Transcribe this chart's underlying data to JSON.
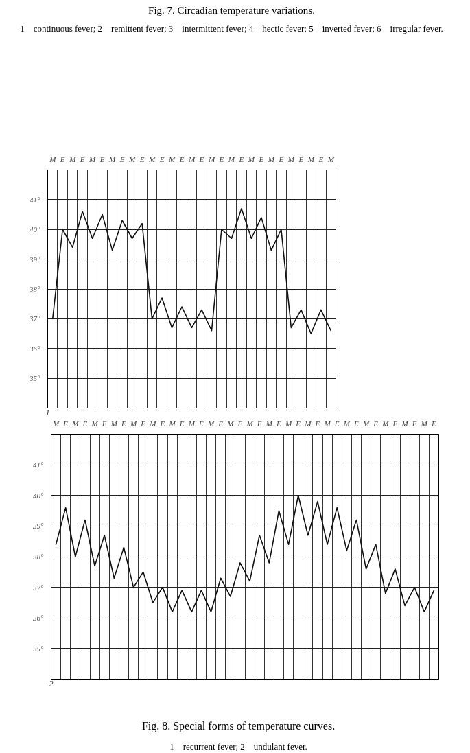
{
  "chart_data": [
    {
      "type": "line",
      "annotations": [
        "Fig. 7. Circadian temperature variations.",
        "1—continuous fever; 2—remittent fever; 3—intermittent fever; 4—hectic fever; 5—inverted fever; 6—irregular fever."
      ],
      "xlabel": "1",
      "categories": [
        "M",
        "E",
        "M",
        "E",
        "M",
        "E",
        "M",
        "E",
        "M",
        "E",
        "M",
        "E",
        "M",
        "E",
        "M",
        "E",
        "M",
        "E",
        "M",
        "E",
        "M",
        "E",
        "M",
        "E",
        "M",
        "E",
        "M",
        "E",
        "M"
      ],
      "series": [
        {
          "color": "#111111",
          "values": [
            37.0,
            40.0,
            39.4,
            40.6,
            39.7,
            40.5,
            39.3,
            40.3,
            39.7,
            40.2,
            37.0,
            37.7,
            36.7,
            37.4,
            36.7,
            37.3,
            36.6,
            40.0,
            39.7,
            40.7,
            39.7,
            40.4,
            39.3,
            40.0,
            36.7,
            37.3,
            36.5,
            37.3,
            36.6
          ]
        }
      ],
      "ylim": [
        34,
        42
      ],
      "yticks": [
        {
          "value": 35,
          "label": "35°"
        },
        {
          "value": 36,
          "label": "36°"
        },
        {
          "value": 37,
          "label": "37°"
        },
        {
          "value": 38,
          "label": "38°"
        },
        {
          "value": 39,
          "label": "39°"
        },
        {
          "value": 40,
          "label": "40°"
        },
        {
          "value": 41,
          "label": "41°"
        }
      ],
      "grid": true
    },
    {
      "type": "line",
      "title": "Fig. 8. Special forms of temperature curves.",
      "subtitle": "1—recurrent fever; 2—undulant fever.",
      "xlabel": "2",
      "categories": [
        "M",
        "E",
        "M",
        "E",
        "M",
        "E",
        "M",
        "E",
        "M",
        "E",
        "M",
        "E",
        "M",
        "E",
        "M",
        "E",
        "M",
        "E",
        "M",
        "E",
        "M",
        "E",
        "M",
        "E",
        "M",
        "E",
        "M",
        "E",
        "M",
        "E",
        "M",
        "E",
        "M",
        "E",
        "M",
        "E",
        "M",
        "E",
        "M",
        "E"
      ],
      "series": [
        {
          "color": "#111111",
          "values": [
            38.4,
            39.6,
            38.0,
            39.2,
            37.7,
            38.7,
            37.3,
            38.3,
            37.0,
            37.5,
            36.5,
            37.0,
            36.2,
            36.9,
            36.2,
            36.9,
            36.2,
            37.3,
            36.7,
            37.8,
            37.2,
            38.7,
            37.8,
            39.5,
            38.4,
            40.0,
            38.7,
            39.8,
            38.4,
            39.6,
            38.2,
            39.2,
            37.6,
            38.4,
            36.8,
            37.6,
            36.4,
            37.0,
            36.2,
            36.9
          ]
        }
      ],
      "ylim": [
        34,
        42
      ],
      "yticks": [
        {
          "value": 35,
          "label": "35°"
        },
        {
          "value": 36,
          "label": "36°"
        },
        {
          "value": 37,
          "label": "37°"
        },
        {
          "value": 38,
          "label": "38°"
        },
        {
          "value": 39,
          "label": "39°"
        },
        {
          "value": 40,
          "label": "40°"
        },
        {
          "value": 41,
          "label": "41°"
        }
      ],
      "grid": true
    }
  ]
}
